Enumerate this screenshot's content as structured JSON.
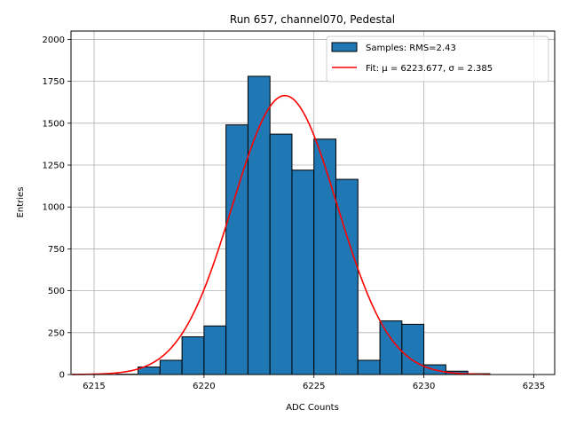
{
  "chart_data": {
    "type": "bar",
    "title": "Run 657, channel070, Pedestal",
    "xlabel": "ADC Counts",
    "ylabel": "Entries",
    "xlim": [
      6213.95,
      6235.95
    ],
    "ylim": [
      0,
      2050
    ],
    "xticks": [
      6215,
      6220,
      6225,
      6230,
      6235
    ],
    "yticks": [
      0,
      250,
      500,
      750,
      1000,
      1250,
      1500,
      1750,
      2000
    ],
    "grid": true,
    "legend_position": "top-right",
    "bin_width": 1,
    "bins": [
      {
        "x": 6216,
        "count": 2
      },
      {
        "x": 6217,
        "count": 45
      },
      {
        "x": 6218,
        "count": 85
      },
      {
        "x": 6219,
        "count": 225
      },
      {
        "x": 6220,
        "count": 290
      },
      {
        "x": 6221,
        "count": 1490
      },
      {
        "x": 6222,
        "count": 1780
      },
      {
        "x": 6223,
        "count": 1435
      },
      {
        "x": 6224,
        "count": 1220
      },
      {
        "x": 6225,
        "count": 1405
      },
      {
        "x": 6226,
        "count": 1165
      },
      {
        "x": 6227,
        "count": 85
      },
      {
        "x": 6228,
        "count": 320
      },
      {
        "x": 6229,
        "count": 300
      },
      {
        "x": 6230,
        "count": 58
      },
      {
        "x": 6231,
        "count": 20
      },
      {
        "x": 6232,
        "count": 5
      }
    ],
    "series": [
      {
        "name": "Samples: RMS=2.43",
        "kind": "histogram",
        "color": "#1f77b4",
        "edgecolor": "#000000"
      },
      {
        "name": "Fit: μ = 6223.677, σ = 2.385",
        "kind": "line",
        "color": "#ff0000",
        "mu": 6223.677,
        "sigma": 2.385,
        "amplitude": 1665,
        "x_range": [
          6214,
          6233
        ]
      }
    ]
  }
}
